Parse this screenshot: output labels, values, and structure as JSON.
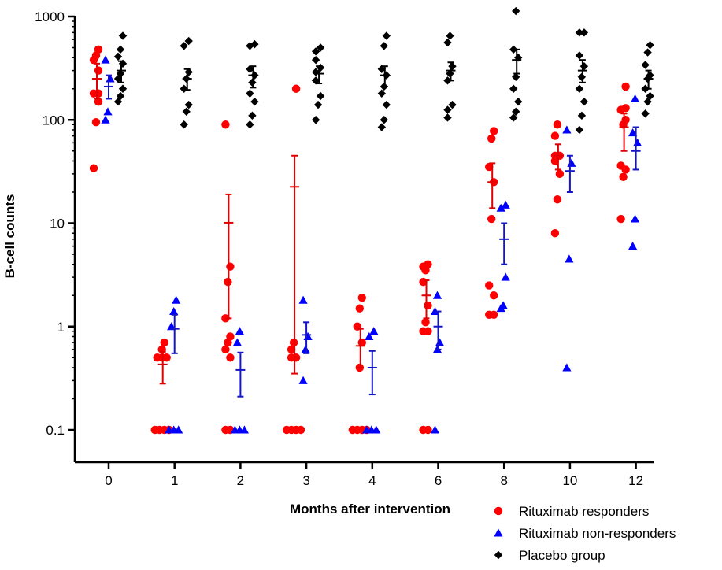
{
  "chart_data": {
    "type": "scatter",
    "title": "",
    "xlabel": "Months after intervention",
    "ylabel": "B-cell counts",
    "y_scale": "log",
    "ylim": [
      0.1,
      1000
    ],
    "y_ticks": [
      "0.1",
      "1",
      "10",
      "100",
      "1000"
    ],
    "categories": [
      "0",
      "1",
      "2",
      "3",
      "4",
      "6",
      "8",
      "10",
      "12"
    ],
    "legend_position": "bottom-right",
    "series": [
      {
        "name": "Rituximab responders",
        "marker": "circle",
        "color": "#ff0000",
        "errorbar_color": "#e00000",
        "points": [
          [
            34,
            95,
            150,
            180,
            180,
            300,
            380,
            420,
            480
          ],
          [
            0.1,
            0.1,
            0.1,
            0.1,
            0.5,
            0.5,
            0.5,
            0.6,
            0.7
          ],
          [
            0.1,
            0.1,
            0.5,
            0.6,
            0.7,
            0.8,
            1.2,
            2.7,
            3.8,
            90
          ],
          [
            0.1,
            0.1,
            0.1,
            0.1,
            0.5,
            0.5,
            0.6,
            0.7,
            200
          ],
          [
            0.1,
            0.1,
            0.1,
            0.1,
            0.4,
            0.7,
            1.0,
            1.5,
            1.9
          ],
          [
            0.1,
            0.1,
            0.9,
            0.9,
            1.1,
            1.6,
            2.7,
            3.5,
            3.8,
            4.0
          ],
          [
            1.3,
            1.3,
            2.0,
            2.5,
            11,
            25,
            35,
            66,
            78
          ],
          [
            8,
            17,
            30,
            40,
            45,
            45,
            70,
            90
          ],
          [
            11,
            28,
            33,
            36,
            90,
            100,
            125,
            130,
            210
          ]
        ],
        "mean": [
          250,
          0.43,
          10.1,
          22.5,
          0.65,
          2.0,
          25,
          45,
          85
        ],
        "err_low": [
          160,
          0.28,
          1.2,
          0.35,
          0.4,
          1.2,
          14,
          33,
          50
        ],
        "err_high": [
          350,
          0.57,
          19,
          45,
          0.95,
          2.8,
          38,
          58,
          115
        ]
      },
      {
        "name": "Rituximab non-responders",
        "marker": "triangle",
        "color": "#0000ff",
        "errorbar_color": "#1515c8",
        "points": [
          [
            100,
            120,
            250,
            380
          ],
          [
            0.1,
            0.1,
            0.1,
            1.0,
            1.4,
            1.8
          ],
          [
            0.1,
            0.1,
            0.1,
            0.7,
            0.9
          ],
          [
            0.3,
            0.6,
            0.8,
            1.8
          ],
          [
            0.1,
            0.1,
            0.1,
            0.8,
            0.9
          ],
          [
            0.1,
            0.6,
            0.7,
            1.4,
            2.0
          ],
          [
            1.5,
            1.6,
            3.0,
            14,
            15
          ],
          [
            0.4,
            4.5,
            38,
            80
          ],
          [
            6,
            11,
            60,
            75,
            160
          ]
        ],
        "mean": [
          210,
          0.95,
          0.38,
          0.83,
          0.4,
          1.0,
          7,
          32,
          50
        ],
        "err_low": [
          160,
          0.55,
          0.21,
          0.55,
          0.22,
          0.6,
          4,
          20,
          33
        ],
        "err_high": [
          270,
          1.3,
          0.56,
          1.1,
          0.58,
          1.4,
          10,
          45,
          85
        ]
      },
      {
        "name": "Placebo group",
        "marker": "diamond",
        "color": "#000000",
        "errorbar_color": "#000000",
        "points": [
          [
            150,
            170,
            200,
            250,
            280,
            350,
            410,
            480,
            650
          ],
          [
            90,
            120,
            140,
            200,
            250,
            290,
            520,
            580
          ],
          [
            90,
            110,
            150,
            180,
            230,
            270,
            310,
            520,
            540
          ],
          [
            100,
            140,
            170,
            240,
            290,
            320,
            380,
            460,
            500
          ],
          [
            85,
            100,
            140,
            180,
            210,
            270,
            310,
            520,
            650
          ],
          [
            105,
            125,
            140,
            240,
            280,
            330,
            560,
            650
          ],
          [
            105,
            120,
            150,
            200,
            260,
            400,
            480,
            1130
          ],
          [
            80,
            110,
            150,
            200,
            260,
            330,
            420,
            700,
            700
          ],
          [
            115,
            150,
            170,
            200,
            250,
            270,
            340,
            450,
            530
          ]
        ],
        "mean": [
          300,
          250,
          270,
          280,
          270,
          300,
          380,
          300,
          250
        ],
        "err_low": [
          230,
          195,
          205,
          225,
          210,
          240,
          280,
          230,
          200
        ],
        "err_high": [
          370,
          310,
          330,
          330,
          330,
          360,
          480,
          380,
          300
        ]
      }
    ]
  }
}
